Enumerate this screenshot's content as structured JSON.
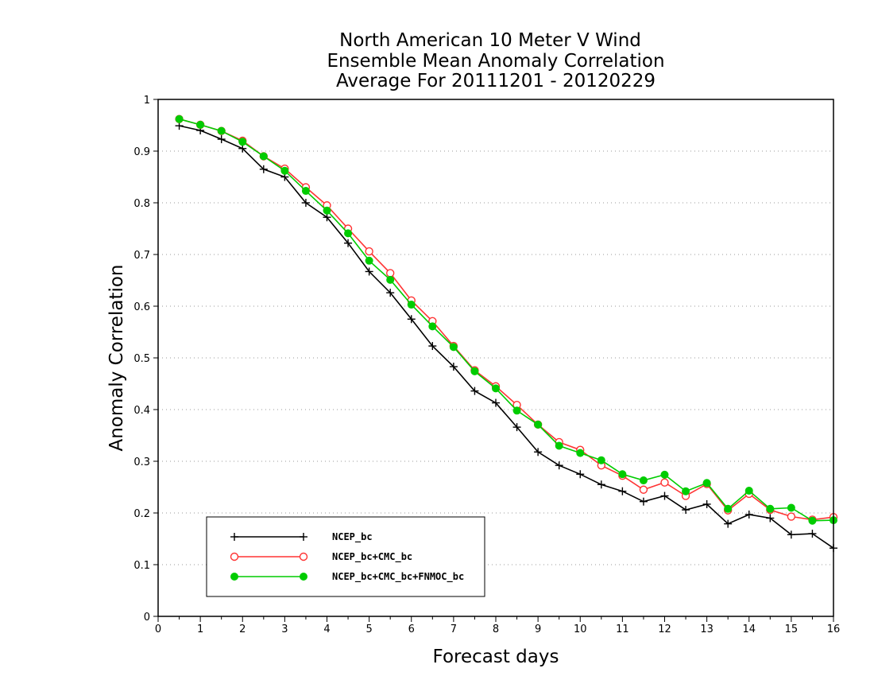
{
  "chart_data": {
    "type": "line",
    "title": [
      "North American 10 Meter V Wind",
      "Ensemble Mean Anomaly Correlation",
      "Average For 20111201 - 20120229"
    ],
    "xlabel": "Forecast days",
    "ylabel": "Anomaly Correlation",
    "xlim": [
      0,
      16
    ],
    "ylim": [
      0,
      1
    ],
    "xticks": [
      "0",
      "1",
      "2",
      "3",
      "4",
      "5",
      "6",
      "7",
      "8",
      "9",
      "10",
      "11",
      "12",
      "13",
      "14",
      "15",
      "16"
    ],
    "yticks": [
      "0",
      "0.1",
      "0.2",
      "0.3",
      "0.4",
      "0.5",
      "0.6",
      "0.7",
      "0.8",
      "0.9",
      "1"
    ],
    "grid": "horizontal-dotted",
    "legend_position": "bottom-left",
    "x": [
      0.5,
      1,
      1.5,
      2,
      2.5,
      3,
      3.5,
      4,
      4.5,
      5,
      5.5,
      6,
      6.5,
      7,
      7.5,
      8,
      8.5,
      9,
      9.5,
      10,
      10.5,
      11,
      11.5,
      12,
      12.5,
      13,
      13.5,
      14,
      14.5,
      15,
      15.5,
      16
    ],
    "series": [
      {
        "name": "NCEP_bc",
        "color": "#000000",
        "marker": "plus",
        "values": [
          0.949,
          0.94,
          0.923,
          0.905,
          0.865,
          0.85,
          0.8,
          0.772,
          0.722,
          0.667,
          0.626,
          0.575,
          0.523,
          0.483,
          0.436,
          0.413,
          0.366,
          0.318,
          0.292,
          0.275,
          0.255,
          0.242,
          0.222,
          0.233,
          0.206,
          0.217,
          0.179,
          0.197,
          0.19,
          0.158,
          0.16,
          0.132
        ]
      },
      {
        "name": "NCEP_bc+CMC_bc",
        "color": "#ff3333",
        "marker": "open-circle",
        "values": [
          0.962,
          0.951,
          0.939,
          0.92,
          0.89,
          0.866,
          0.83,
          0.795,
          0.75,
          0.706,
          0.664,
          0.611,
          0.571,
          0.523,
          0.476,
          0.445,
          0.409,
          0.371,
          0.337,
          0.322,
          0.292,
          0.272,
          0.245,
          0.259,
          0.233,
          0.256,
          0.205,
          0.237,
          0.206,
          0.193,
          0.187,
          0.192
        ]
      },
      {
        "name": "NCEP_bc+CMC_bc+FNMOC_bc",
        "color": "#00cc00",
        "marker": "filled-circle",
        "values": [
          0.962,
          0.951,
          0.939,
          0.918,
          0.89,
          0.862,
          0.823,
          0.785,
          0.741,
          0.688,
          0.651,
          0.603,
          0.561,
          0.521,
          0.474,
          0.441,
          0.398,
          0.371,
          0.33,
          0.316,
          0.302,
          0.275,
          0.263,
          0.274,
          0.242,
          0.258,
          0.208,
          0.243,
          0.208,
          0.21,
          0.185,
          0.186
        ]
      }
    ]
  }
}
